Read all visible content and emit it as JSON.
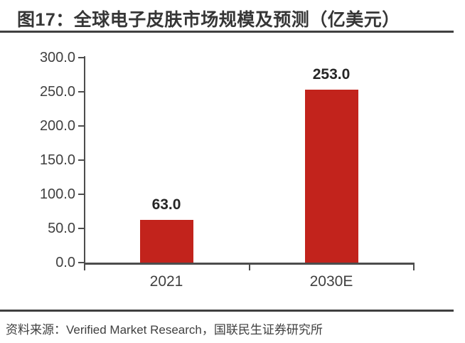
{
  "figure": {
    "title": "图17：全球电子皮肤市场规模及预测（亿美元）",
    "source": "资料来源：Verified Market Research，国联民生证券研究所"
  },
  "colors": {
    "bar": "#c2231c",
    "axis": "#4d4d4d",
    "tick_text": "#404040",
    "value_text": "#262626",
    "rule": "#404040"
  },
  "chart_data": {
    "type": "bar",
    "title": "全球电子皮肤市场规模及预测（亿美元）",
    "categories": [
      "2021",
      "2030E"
    ],
    "values": [
      63.0,
      253.0
    ],
    "data_labels": [
      "63.0",
      "253.0"
    ],
    "xlabel": "",
    "ylabel": "",
    "ylim": [
      0,
      300
    ],
    "ytick_step": 50,
    "ytick_labels": [
      "0.0",
      "50.0",
      "100.0",
      "150.0",
      "200.0",
      "250.0",
      "300.0"
    ],
    "grid": false,
    "legend": false,
    "bar_color": "#c2231c"
  }
}
